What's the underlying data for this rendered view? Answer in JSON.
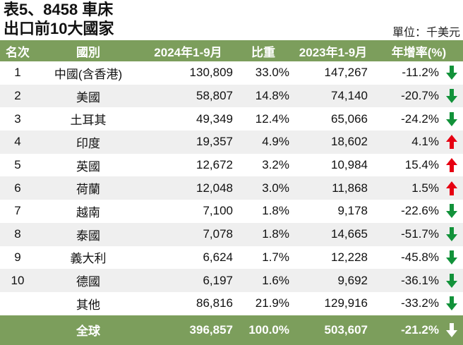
{
  "title": {
    "line1": "表5、8458 車床",
    "line2": "出口前10大國家"
  },
  "unit": "單位：千美元",
  "table": {
    "headers": [
      "名次",
      "國別",
      "2024年1-9月",
      "比重",
      "2023年1-9月",
      "年增率(%)"
    ],
    "rows": [
      {
        "rank": "1",
        "country": "中國(含香港)",
        "v2024": "130,809",
        "share": "33.0%",
        "v2023": "147,267",
        "yoy": "-11.2%",
        "trend": "down"
      },
      {
        "rank": "2",
        "country": "美國",
        "v2024": "58,807",
        "share": "14.8%",
        "v2023": "74,140",
        "yoy": "-20.7%",
        "trend": "down"
      },
      {
        "rank": "3",
        "country": "土耳其",
        "v2024": "49,349",
        "share": "12.4%",
        "v2023": "65,066",
        "yoy": "-24.2%",
        "trend": "down"
      },
      {
        "rank": "4",
        "country": "印度",
        "v2024": "19,357",
        "share": "4.9%",
        "v2023": "18,602",
        "yoy": "4.1%",
        "trend": "up"
      },
      {
        "rank": "5",
        "country": "英國",
        "v2024": "12,672",
        "share": "3.2%",
        "v2023": "10,984",
        "yoy": "15.4%",
        "trend": "up"
      },
      {
        "rank": "6",
        "country": "荷蘭",
        "v2024": "12,048",
        "share": "3.0%",
        "v2023": "11,868",
        "yoy": "1.5%",
        "trend": "up"
      },
      {
        "rank": "7",
        "country": "越南",
        "v2024": "7,100",
        "share": "1.8%",
        "v2023": "9,178",
        "yoy": "-22.6%",
        "trend": "down"
      },
      {
        "rank": "8",
        "country": "泰國",
        "v2024": "7,078",
        "share": "1.8%",
        "v2023": "14,665",
        "yoy": "-51.7%",
        "trend": "down"
      },
      {
        "rank": "9",
        "country": "義大利",
        "v2024": "6,624",
        "share": "1.7%",
        "v2023": "12,228",
        "yoy": "-45.8%",
        "trend": "down"
      },
      {
        "rank": "10",
        "country": "德國",
        "v2024": "6,197",
        "share": "1.6%",
        "v2023": "9,692",
        "yoy": "-36.1%",
        "trend": "down"
      },
      {
        "rank": "",
        "country": "其他",
        "v2024": "86,816",
        "share": "21.9%",
        "v2023": "129,916",
        "yoy": "-33.2%",
        "trend": "down"
      }
    ],
    "total": {
      "rank": "",
      "country": "全球",
      "v2024": "396,857",
      "share": "100.0%",
      "v2023": "503,607",
      "yoy": "-21.2%",
      "trend": "down"
    }
  },
  "colors": {
    "header_bg": "#7c9e5c",
    "row_alt_bg": "#efefef",
    "arrow_up": "#e60012",
    "arrow_down": "#12923a",
    "arrow_total": "#ffffff"
  }
}
